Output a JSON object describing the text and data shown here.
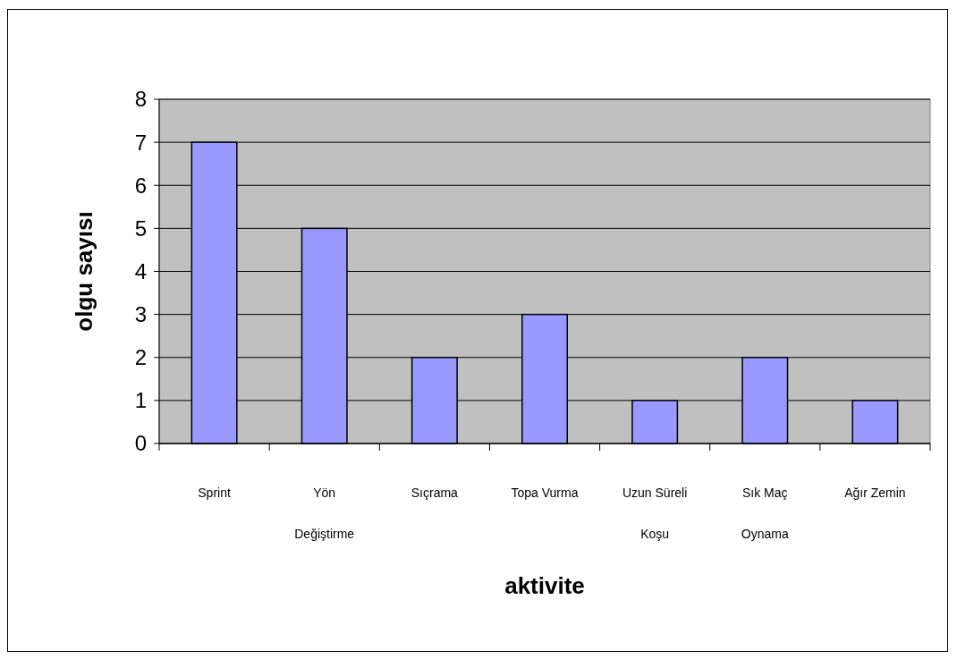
{
  "chart_data": {
    "type": "bar",
    "xlabel": "aktivite",
    "ylabel": "olgu sayısı",
    "categories": [
      "Sprint",
      "Yön\nDeğiştirme",
      "Sıçrama",
      "Topa Vurma",
      "Uzun Süreli\nKoşu",
      "Sık Maç\nOynama",
      "Ağır Zemin"
    ],
    "values": [
      7,
      5,
      2,
      3,
      1,
      2,
      1
    ],
    "color": "#9999ff",
    "ylim": [
      0,
      8
    ],
    "yticks": [
      0,
      1,
      2,
      3,
      4,
      5,
      6,
      7,
      8
    ],
    "grid": "y"
  }
}
